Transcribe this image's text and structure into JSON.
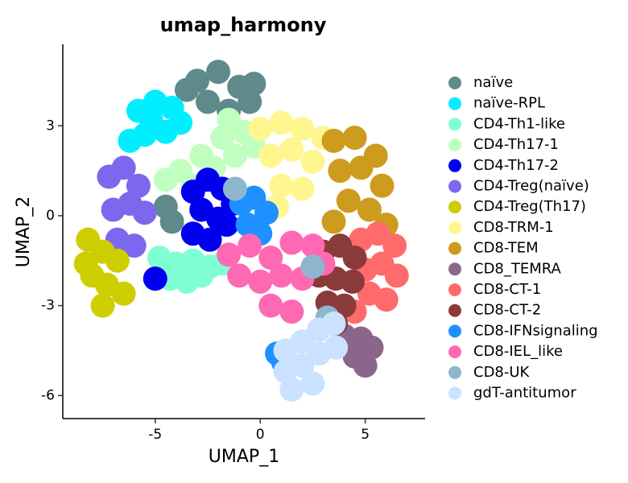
{
  "chart_data": {
    "type": "scatter",
    "title": "umap_harmony",
    "x_label": "UMAP_1",
    "y_label": "UMAP_2",
    "xlim": [
      -9.4,
      7.85
    ],
    "ylim": [
      -6.77,
      5.72
    ],
    "xticks": [
      -5,
      0,
      5
    ],
    "yticks": [
      3,
      0,
      -3,
      -6
    ],
    "grid": false,
    "legend": "right",
    "series": [
      {
        "name": "naïve",
        "color": "#5f8a8b",
        "x": [
          -3,
          -2,
          -1,
          -0.5,
          -2.5,
          -1.5,
          -3.5,
          -0.3,
          -4.5,
          -4.2
        ],
        "y": [
          4.5,
          4.8,
          4.3,
          3.8,
          3.8,
          3.5,
          4.2,
          4.4,
          0.3,
          -0.2
        ]
      },
      {
        "name": "naïve-RPL",
        "color": "#00eeff",
        "x": [
          -5.8,
          -5,
          -4.2,
          -5.5,
          -4.5,
          -6.2,
          -3.8,
          -5.2
        ],
        "y": [
          3.5,
          3.8,
          3.6,
          2.7,
          2.8,
          2.5,
          3.1,
          3.2
        ]
      },
      {
        "name": "CD4-Th1-like",
        "color": "#7fffd4",
        "x": [
          -4.8,
          -4,
          -3.2,
          -2.4,
          -1.8,
          -4.3,
          -3.5,
          -2.8
        ],
        "y": [
          -1.4,
          -1.6,
          -1.5,
          -1.7,
          -1.6,
          -2.1,
          -2.2,
          -2.0
        ]
      },
      {
        "name": "CD4-Th17-1",
        "color": "#c1ffc1",
        "x": [
          -3.8,
          -2.8,
          -1.8,
          -0.8,
          -3.2,
          -2.2,
          -1.2,
          -0.3,
          -4.5,
          -1.5
        ],
        "y": [
          1.5,
          2.0,
          2.6,
          2.8,
          1.0,
          1.6,
          2.0,
          2.3,
          1.2,
          3.2
        ]
      },
      {
        "name": "CD4-Th17-2",
        "color": "#0000ee",
        "x": [
          -3.2,
          -2.5,
          -1.8,
          -1.3,
          -2.8,
          -2,
          -3.2,
          -2.4,
          -1.6,
          -5
        ],
        "y": [
          0.8,
          1.2,
          0.9,
          0.4,
          0.2,
          -0.1,
          -0.6,
          -0.8,
          -0.3,
          -2.1
        ]
      },
      {
        "name": "CD4-Treg(naïve)",
        "color": "#7b68ee",
        "x": [
          -7.2,
          -6.5,
          -5.8,
          -7,
          -6.2,
          -5.5,
          -6.8,
          -6
        ],
        "y": [
          1.3,
          1.6,
          1.0,
          0.2,
          0.4,
          0.1,
          -0.8,
          -1.0
        ]
      },
      {
        "name": "CD4-Treg(Th17)",
        "color": "#cdcd00",
        "x": [
          -8.2,
          -7.5,
          -6.8,
          -8,
          -7.3,
          -7.5,
          -8.3,
          -6.5
        ],
        "y": [
          -0.8,
          -1.2,
          -1.5,
          -2.0,
          -2.3,
          -3.0,
          -1.6,
          -2.6
        ]
      },
      {
        "name": "CD8-TRM-1",
        "color": "#fff68f",
        "x": [
          0,
          1,
          2,
          3,
          0.5,
          1.5,
          2.5,
          1,
          2,
          0.8
        ],
        "y": [
          2.9,
          3.1,
          2.9,
          2.6,
          2.0,
          2.2,
          1.8,
          1.0,
          0.9,
          0.3
        ]
      },
      {
        "name": "CD8-TEM",
        "color": "#cd9b1d",
        "x": [
          3.5,
          4.5,
          5.5,
          3.8,
          4.8,
          5.8,
          4.2,
          5.2,
          6,
          3.5
        ],
        "y": [
          2.5,
          2.6,
          2.0,
          1.5,
          1.6,
          1.0,
          0.5,
          0.2,
          -0.3,
          -0.2
        ]
      },
      {
        "name": "CD8_TEMRA",
        "color": "#8b668b",
        "x": [
          4,
          4.8,
          5.3,
          4.5,
          5
        ],
        "y": [
          -4.0,
          -4.1,
          -4.4,
          -4.7,
          -5.0
        ]
      },
      {
        "name": "CD8-CT-1",
        "color": "#ff6a6a",
        "x": [
          4.8,
          5.6,
          6.4,
          5,
          5.8,
          6.5,
          5.2,
          6,
          4.5
        ],
        "y": [
          -0.8,
          -0.6,
          -1.0,
          -1.8,
          -1.6,
          -2.0,
          -2.6,
          -2.8,
          -3.2
        ]
      },
      {
        "name": "CD8-CT-2",
        "color": "#8b3a3a",
        "x": [
          3,
          3.8,
          4.5,
          2.8,
          3.6,
          4.4,
          3.2,
          4,
          3.6
        ],
        "y": [
          -1.2,
          -1.0,
          -1.4,
          -2.0,
          -2.1,
          -2.2,
          -2.9,
          -3.0,
          -3.6
        ]
      },
      {
        "name": "CD8-IFNsignaling",
        "color": "#1e90ff",
        "x": [
          -0.9,
          -0.3,
          0.3,
          -0.6,
          0,
          0.8,
          1.1
        ],
        "y": [
          0.4,
          0.6,
          0.1,
          -0.3,
          -0.6,
          -4.6,
          -4.9
        ]
      },
      {
        "name": "CD8-IEL_like",
        "color": "#ff69b4",
        "x": [
          -1.5,
          -0.5,
          0.5,
          1.5,
          2.5,
          -1,
          0,
          1,
          2,
          3,
          0.5,
          1.5
        ],
        "y": [
          -1.3,
          -1.0,
          -1.4,
          -0.9,
          -1.0,
          -2.0,
          -2.2,
          -2.0,
          -2.1,
          -1.6,
          -3.0,
          -3.2
        ]
      },
      {
        "name": "CD8-UK",
        "color": "#8db6cd",
        "x": [
          3.2,
          2.5,
          -1.2
        ],
        "y": [
          -3.4,
          -1.7,
          0.9
        ]
      },
      {
        "name": "gdT-antitumor",
        "color": "#cae1ff",
        "x": [
          1.2,
          2,
          2.8,
          3.5,
          1.2,
          2,
          2.8,
          3.6,
          1.5,
          2.5
        ],
        "y": [
          -4.5,
          -4.2,
          -3.8,
          -3.6,
          -5.2,
          -5.0,
          -4.6,
          -4.4,
          -5.8,
          -5.6
        ]
      }
    ]
  }
}
